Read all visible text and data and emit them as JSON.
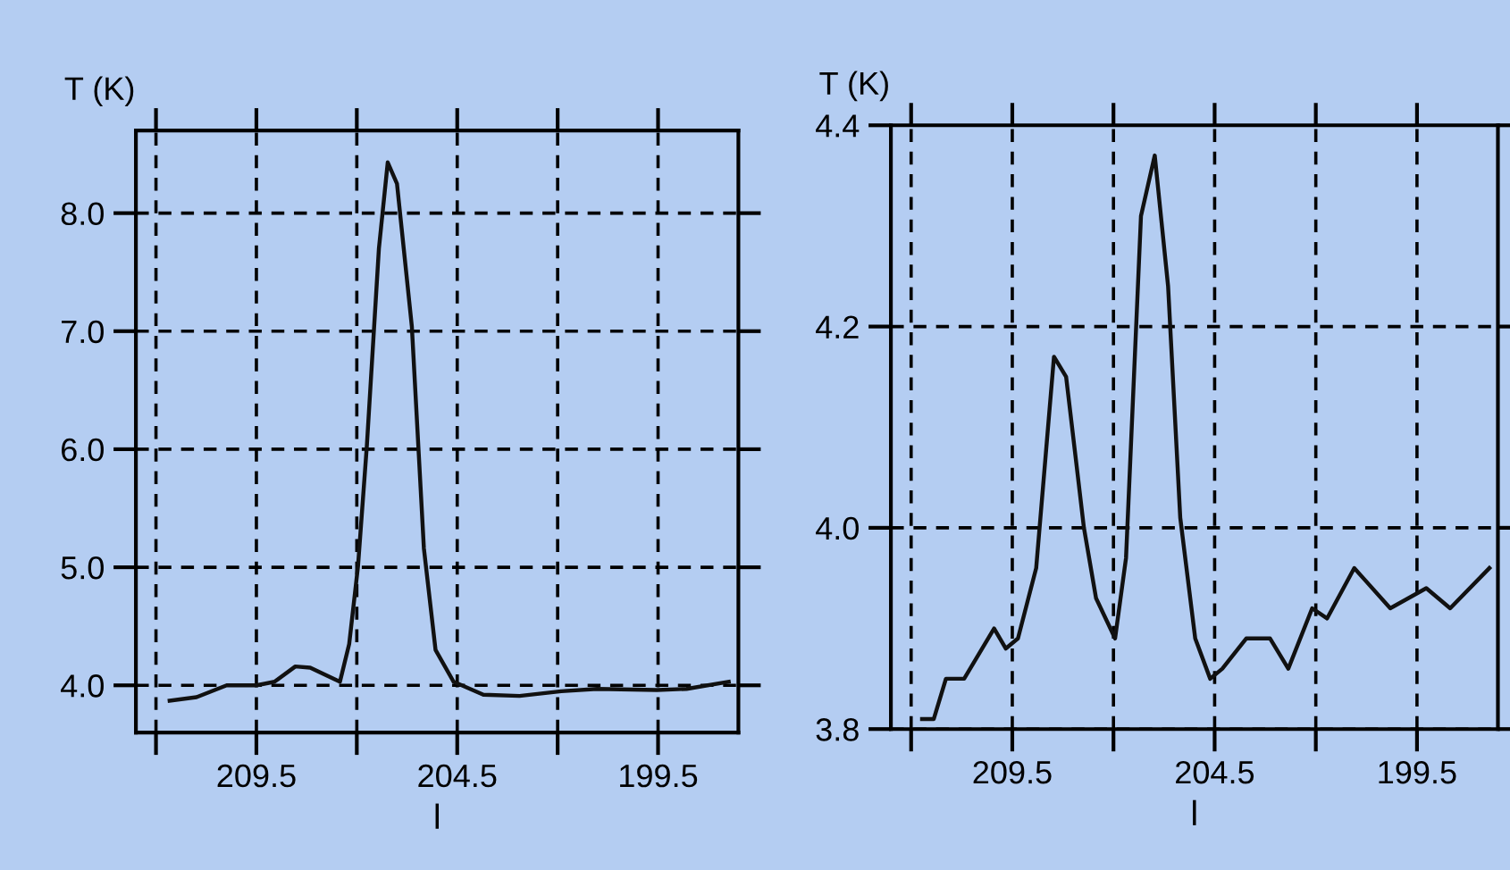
{
  "chart_data": [
    {
      "type": "line",
      "xlabel": "l",
      "ylabel": "T (K)",
      "xlim": [
        212.5,
        197.5
      ],
      "ylim": [
        3.6,
        8.7
      ],
      "xticks": [
        {
          "value": 212,
          "label": null
        },
        209.5,
        {
          "value": 207,
          "label": null
        },
        204.5,
        {
          "value": 202,
          "label": null
        },
        199.5
      ],
      "yticks": [
        {
          "value": 4,
          "label": "4.0"
        },
        {
          "value": 5,
          "label": "5.0"
        },
        {
          "value": 6,
          "label": "6.0"
        },
        {
          "value": 7,
          "label": "7.0"
        },
        {
          "value": 8,
          "label": "8.0"
        }
      ],
      "grid": true,
      "line_style": "solid",
      "marker": "none",
      "series": [
        {
          "color": "#111111",
          "x": [
            211.66,
            210.99,
            210.24,
            209.5,
            209.05,
            208.53,
            208.16,
            207.42,
            207.19,
            206.97,
            206.75,
            206.45,
            206.23,
            206.0,
            205.63,
            205.33,
            205.04,
            204.59,
            203.85,
            202.95,
            201.91,
            201.02,
            199.53,
            198.79,
            197.74
          ],
          "values": [
            3.87,
            3.9,
            4.0,
            4.0,
            4.03,
            4.16,
            4.15,
            4.03,
            4.35,
            5.01,
            6.03,
            7.7,
            8.43,
            8.25,
            7.04,
            5.16,
            4.3,
            4.03,
            3.92,
            3.91,
            3.95,
            3.97,
            3.96,
            3.97,
            4.03
          ]
        }
      ]
    },
    {
      "type": "line",
      "xlabel": "l",
      "ylabel": "T (K)",
      "xlim": [
        212.5,
        197.5
      ],
      "ylim": [
        3.8,
        4.4
      ],
      "xticks": [
        {
          "value": 212,
          "label": null
        },
        209.5,
        {
          "value": 207,
          "label": null
        },
        204.5,
        {
          "value": 202,
          "label": null
        },
        199.5
      ],
      "yticks": [
        3.8,
        {
          "value": 4,
          "label": "4.0"
        },
        4.2,
        4.4
      ],
      "grid": true,
      "line_style": "solid",
      "marker": "none",
      "series": [
        {
          "color": "#111111",
          "x": [
            211.73,
            211.44,
            211.14,
            210.69,
            209.95,
            209.66,
            209.36,
            208.91,
            208.47,
            208.17,
            207.73,
            207.43,
            206.96,
            206.69,
            206.32,
            205.98,
            205.65,
            205.35,
            204.98,
            204.61,
            204.31,
            203.72,
            203.13,
            202.68,
            202.09,
            201.72,
            201.05,
            200.16,
            199.27,
            198.68,
            197.71
          ],
          "values": [
            3.81,
            3.81,
            3.85,
            3.85,
            3.9,
            3.88,
            3.89,
            3.96,
            4.17,
            4.15,
            4.0,
            3.93,
            3.89,
            3.97,
            4.31,
            4.37,
            4.24,
            4.01,
            3.89,
            3.85,
            3.86,
            3.89,
            3.89,
            3.86,
            3.92,
            3.91,
            3.96,
            3.92,
            3.94,
            3.92,
            3.96
          ]
        }
      ]
    }
  ]
}
